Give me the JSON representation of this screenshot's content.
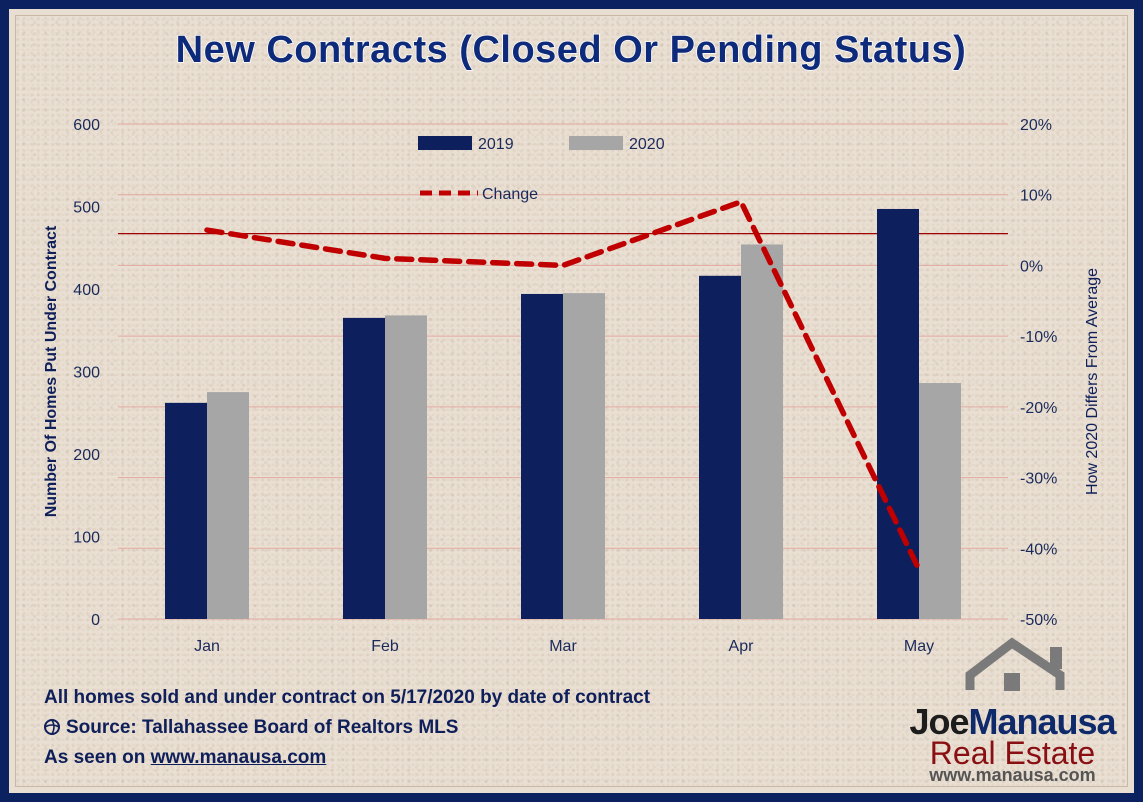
{
  "title": "New Contracts (Closed Or Pending Status)",
  "chart_data": {
    "type": "bar",
    "categories": [
      "Jan",
      "Feb",
      "Mar",
      "Apr",
      "May"
    ],
    "series": [
      {
        "name": "2019",
        "values": [
          262,
          365,
          394,
          416,
          497
        ],
        "color": "#0d1f5c",
        "axis": "left"
      },
      {
        "name": "2020",
        "values": [
          275,
          368,
          395,
          454,
          286
        ],
        "color": "#a6a6a6",
        "axis": "left"
      }
    ],
    "line_series": {
      "name": "Change",
      "values": [
        5,
        1,
        0,
        9,
        -43
      ],
      "color": "#c00000",
      "axis": "right",
      "style": "dashed"
    },
    "ylabel": "Number Of Homes Put Under Contract",
    "ylim": [
      0,
      600
    ],
    "yticks": [
      "0",
      "100",
      "200",
      "300",
      "400",
      "500",
      "600"
    ],
    "y2label": "How 2020 Differs From Average",
    "y2lim": [
      -50,
      20
    ],
    "y2ticks": [
      "-50%",
      "-40%",
      "-30%",
      "-20%",
      "-10%",
      "0%",
      "10%",
      "20%"
    ],
    "reference_line": {
      "value": 0.045,
      "units": "y2 fraction",
      "color": "#a00000"
    },
    "grid": true,
    "legend_placement": "top-center"
  },
  "footer": {
    "line1": "All homes sold and under contract on 5/17/2020 by date of contract",
    "line2": "Source: Tallahassee Board of Realtors MLS",
    "line3_prefix": "As seen on ",
    "line3_link": "www.manausa.com"
  },
  "logo": {
    "name_a": "Joe",
    "name_b": "Manausa",
    "sub": "Real Estate",
    "url": "www.manausa.com"
  }
}
